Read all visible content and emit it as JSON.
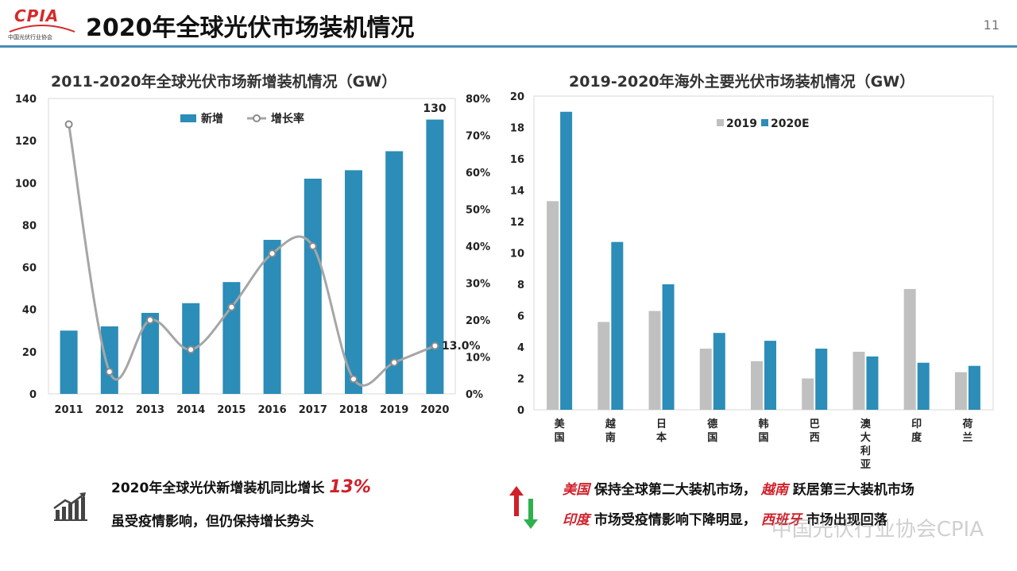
{
  "header": {
    "logo_text": "CPIA",
    "logo_subtext": "中国光伏行业协会",
    "title": "2020年全球光伏市场装机情况",
    "page_number": "11"
  },
  "colors": {
    "bar_blue": "#2b8db8",
    "bar_gray": "#c0c0c0",
    "line_gray": "#999999",
    "accent_red": "#d0202a",
    "rule_blue": "#4a8db7"
  },
  "chart_data": [
    {
      "type": "bar",
      "title": "2011-2020年全球光伏市场新增装机情况（GW）",
      "categories": [
        "2011",
        "2012",
        "2013",
        "2014",
        "2015",
        "2016",
        "2017",
        "2018",
        "2019",
        "2020"
      ],
      "series": [
        {
          "name": "新增",
          "type": "bar",
          "values": [
            30,
            32,
            38.4,
            43,
            53,
            73,
            102,
            106,
            115,
            130
          ]
        },
        {
          "name": "增长率",
          "type": "line",
          "axis": "right",
          "values": [
            0.73,
            0.06,
            0.2,
            0.12,
            0.235,
            0.38,
            0.4,
            0.04,
            0.085,
            0.13
          ]
        }
      ],
      "ylim": [
        0,
        140
      ],
      "yticks": [
        "0",
        "20",
        "40",
        "60",
        "80",
        "100",
        "120",
        "140"
      ],
      "y2lim": [
        0,
        0.8
      ],
      "y2ticks": [
        "0%",
        "10%",
        "20%",
        "30%",
        "40%",
        "50%",
        "60%",
        "70%",
        "80%"
      ],
      "data_labels": {
        "last_bar": "130",
        "last_rate": "13.0%"
      },
      "legend": {
        "position": "top"
      },
      "grid": false
    },
    {
      "type": "bar",
      "title": "2019-2020年海外主要光伏市场装机情况（GW）",
      "categories": [
        "美国",
        "越南",
        "日本",
        "德国",
        "韩国",
        "巴西",
        "澳大利亚",
        "印度",
        "荷兰"
      ],
      "series": [
        {
          "name": "2019",
          "values": [
            13.3,
            5.6,
            6.3,
            3.9,
            3.1,
            2.0,
            3.7,
            7.7,
            2.4
          ]
        },
        {
          "name": "2020E",
          "values": [
            19.0,
            10.7,
            8.0,
            4.9,
            4.4,
            3.9,
            3.4,
            3.0,
            2.8
          ]
        }
      ],
      "ylim": [
        0,
        20
      ],
      "yticks": [
        "0",
        "2",
        "4",
        "6",
        "8",
        "10",
        "12",
        "14",
        "16",
        "18",
        "20"
      ],
      "legend": {
        "position": "top"
      },
      "grid": false
    }
  ],
  "summary_left": {
    "line1_text": "2020年全球光伏新增装机同比增长",
    "line1_highlight": "13%",
    "line2_text": "虽受疫情影响，但仍保持增长势头"
  },
  "summary_right": {
    "r1_hl1": "美国",
    "r1_t1": "保持全球第二大装机市场，",
    "r1_hl2": "越南",
    "r1_t2": "跃居第三大装机市场",
    "r2_hl1": "印度",
    "r2_t1": "市场受疫情影响下降明显，",
    "r2_hl2": "西班牙",
    "r2_t2": "市场出现回落"
  },
  "watermark": "中国光伏行业协会CPIA"
}
